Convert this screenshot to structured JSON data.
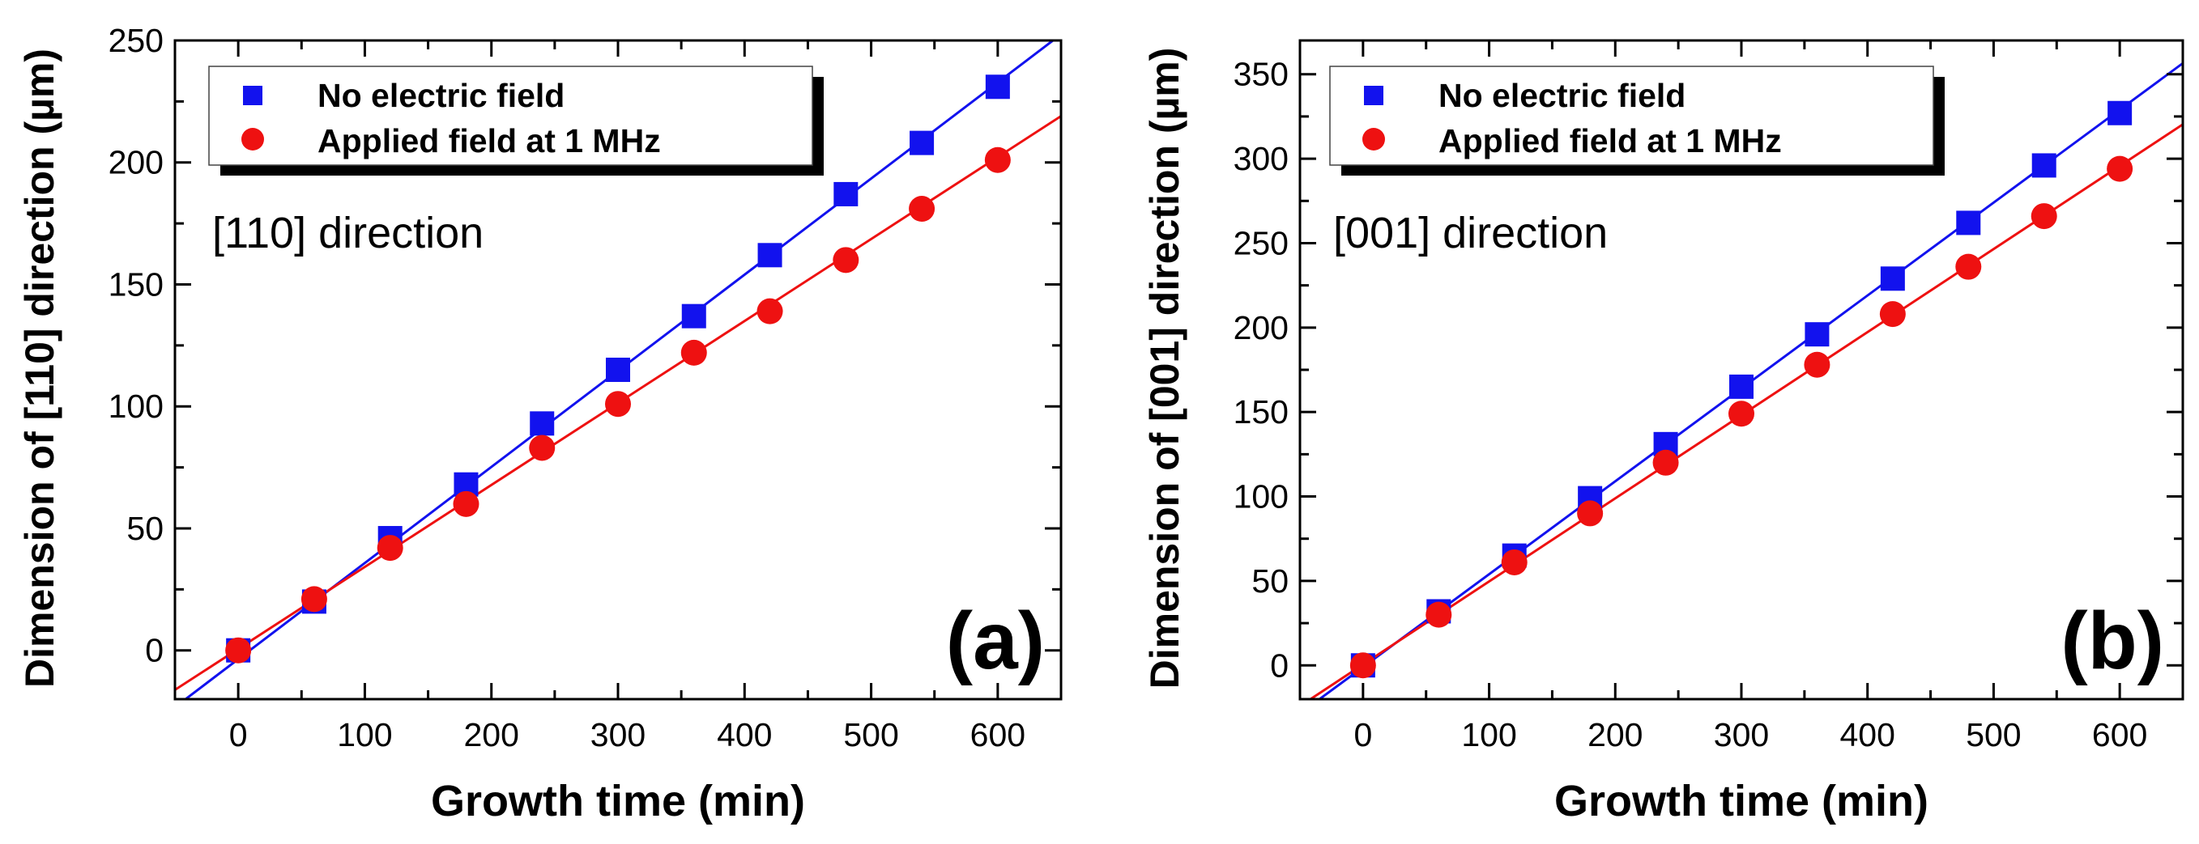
{
  "colors": {
    "series1": "#1212ee",
    "series2": "#ee1111",
    "axis": "#000000"
  },
  "chart_data": [
    {
      "type": "scatter",
      "panel_label": "(a)",
      "annotation": "[110] direction",
      "xlabel": "Growth time (min)",
      "ylabel": "Dimension of [110] direction (µm)",
      "xlim": [
        -50,
        650
      ],
      "ylim": [
        -20,
        250
      ],
      "xticks": [
        0,
        100,
        200,
        300,
        400,
        500,
        600
      ],
      "yticks": [
        0,
        50,
        100,
        150,
        200,
        250
      ],
      "legend_position": "top-left",
      "series": [
        {
          "name": "No electric field",
          "marker": "square",
          "color": "#1212ee",
          "x": [
            0,
            60,
            120,
            180,
            240,
            300,
            360,
            420,
            480,
            540,
            600
          ],
          "y": [
            0,
            20,
            46,
            68,
            93,
            115,
            137,
            162,
            187,
            208,
            231
          ],
          "fit": {
            "slope": 0.394,
            "intercept": -3.6
          }
        },
        {
          "name": "Applied field at 1 MHz",
          "marker": "circle",
          "color": "#ee1111",
          "x": [
            0,
            60,
            120,
            180,
            240,
            300,
            360,
            420,
            480,
            540,
            600
          ],
          "y": [
            0,
            21,
            42,
            60,
            83,
            101,
            122,
            139,
            160,
            181,
            201
          ],
          "fit": {
            "slope": 0.336,
            "intercept": 0.6
          }
        }
      ]
    },
    {
      "type": "scatter",
      "panel_label": "(b)",
      "annotation": "[001] direction",
      "xlabel": "Growth time (min)",
      "ylabel": "Dimension of [001] direction (µm)",
      "xlim": [
        -50,
        650
      ],
      "ylim": [
        -20,
        370
      ],
      "xticks": [
        0,
        100,
        200,
        300,
        400,
        500,
        600
      ],
      "yticks": [
        0,
        50,
        100,
        150,
        200,
        250,
        300,
        350
      ],
      "legend_position": "top-left",
      "series": [
        {
          "name": "No electric field",
          "marker": "square",
          "color": "#1212ee",
          "x": [
            0,
            60,
            120,
            180,
            240,
            300,
            360,
            420,
            480,
            540,
            600
          ],
          "y": [
            0,
            32,
            65,
            99,
            131,
            165,
            196,
            229,
            262,
            296,
            327
          ],
          "fit": {
            "slope": 0.55,
            "intercept": -1.0
          }
        },
        {
          "name": "Applied field at 1 MHz",
          "marker": "circle",
          "color": "#ee1111",
          "x": [
            0,
            60,
            120,
            180,
            240,
            300,
            360,
            420,
            480,
            540,
            600
          ],
          "y": [
            0,
            30,
            61,
            90,
            120,
            149,
            178,
            208,
            236,
            266,
            294
          ],
          "fit": {
            "slope": 0.492,
            "intercept": 0.5
          }
        }
      ]
    }
  ]
}
